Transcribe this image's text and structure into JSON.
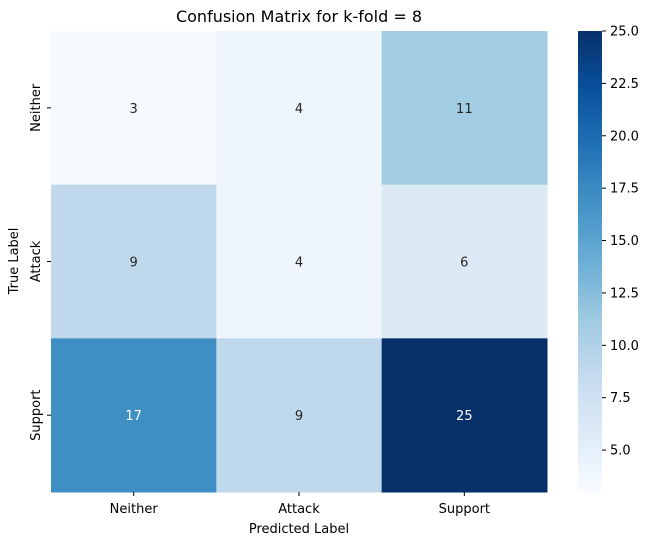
{
  "chart_data": {
    "type": "heatmap",
    "title": "Confusion Matrix for k-fold = 8",
    "xlabel": "Predicted Label",
    "ylabel": "True Label",
    "x_categories": [
      "Neither",
      "Attack",
      "Support"
    ],
    "y_categories": [
      "Neither",
      "Attack",
      "Support"
    ],
    "values": [
      [
        3,
        4,
        11
      ],
      [
        9,
        4,
        6
      ],
      [
        17,
        9,
        25
      ]
    ],
    "colorbar": {
      "min": 3,
      "max": 25,
      "ticks": [
        "5.0",
        "7.5",
        "10.0",
        "12.5",
        "15.0",
        "17.5",
        "20.0",
        "22.5",
        "25.0"
      ],
      "colormap": "Blues"
    }
  }
}
